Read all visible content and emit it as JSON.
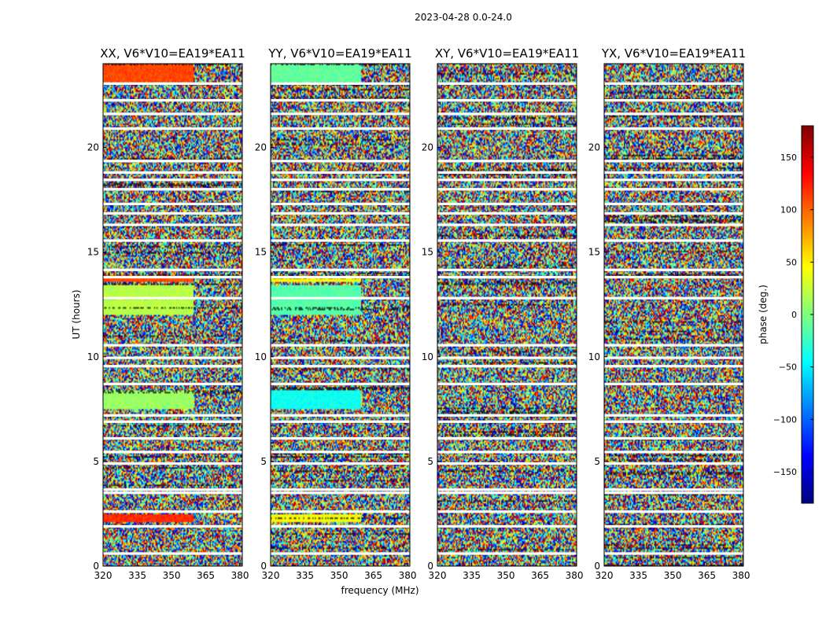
{
  "figure": {
    "suptitle": "2023-04-28 0.0-24.0"
  },
  "chart_data": {
    "type": "heatmap",
    "quantity": "visibility phase",
    "xlabel": "frequency (MHz)",
    "ylabel": "UT (hours)",
    "xlim": [
      320,
      381
    ],
    "ylim": [
      0,
      24
    ],
    "xticks": [
      "320",
      "335",
      "350",
      "365",
      "380"
    ],
    "yticks": [
      "0",
      "5",
      "10",
      "15",
      "20"
    ],
    "colorbar": {
      "label": "phase (deg.)",
      "range": [
        -180,
        180
      ],
      "ticks": [
        "150",
        "100",
        "50",
        "0",
        "−50",
        "−100",
        "−150"
      ],
      "colormap": "jet",
      "colors": [
        "#00007f",
        "#0000ff",
        "#007fff",
        "#00ffff",
        "#7fff7f",
        "#ffff00",
        "#ff7f00",
        "#ff0000",
        "#7f0000"
      ]
    },
    "flagged_hours": [
      0.6,
      1.9,
      2.6,
      3.5,
      3.65,
      4.9,
      5.45,
      6.1,
      6.9,
      7.2,
      8.7,
      9.55,
      9.95,
      10.55,
      12.8,
      13.8,
      14.15,
      15.55,
      16.3,
      16.85,
      17.3,
      18.0,
      18.45,
      18.8,
      19.35,
      20.9,
      21.6,
      22.25,
      23.05
    ],
    "panels": [
      {
        "title": "XX, V6*V10=EA19*EA11",
        "coherent_bands": [
          {
            "hours": [
              2.1,
              2.45
            ],
            "phase": 120
          },
          {
            "hours": [
              7.5,
              8.4
            ],
            "phase": 10
          },
          {
            "hours": [
              12.0,
              13.4
            ],
            "phase": 20
          },
          {
            "hours": [
              13.6,
              13.9
            ],
            "phase": 110
          },
          {
            "hours": [
              23.1,
              24.0
            ],
            "phase": 110
          }
        ]
      },
      {
        "title": "YY, V6*V10=EA19*EA11",
        "coherent_bands": [
          {
            "hours": [
              2.1,
              2.45
            ],
            "phase": 45
          },
          {
            "hours": [
              7.5,
              8.4
            ],
            "phase": -40
          },
          {
            "hours": [
              12.0,
              13.4
            ],
            "phase": -15
          },
          {
            "hours": [
              13.6,
              13.9
            ],
            "phase": 45
          },
          {
            "hours": [
              23.1,
              24.0
            ],
            "phase": -10
          }
        ]
      },
      {
        "title": "XY, V6*V10=EA19*EA11",
        "coherent_bands": []
      },
      {
        "title": "YX, V6*V10=EA19*EA11",
        "coherent_bands": []
      }
    ]
  }
}
